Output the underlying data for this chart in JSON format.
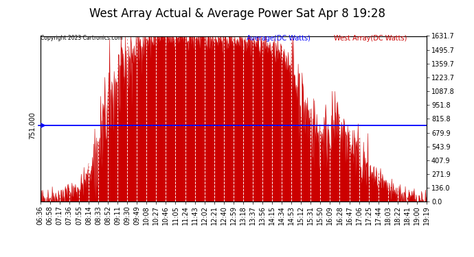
{
  "title": "West Array Actual & Average Power Sat Apr 8 19:28",
  "copyright": "Copyright 2023 Cartronics.com",
  "legend_avg": "Average(DC Watts)",
  "legend_west": "West Array(DC Watts)",
  "avg_line_value": 751.0,
  "left_label": "751.000",
  "right_label": "751.000",
  "right_yticks": [
    1631.7,
    1495.7,
    1359.7,
    1223.7,
    1087.8,
    951.8,
    815.8,
    679.9,
    543.9,
    407.9,
    271.9,
    136.0,
    0.0
  ],
  "ymin": 0.0,
  "ymax": 1631.7,
  "avg_line_color": "#0000ff",
  "fill_color": "#cc0000",
  "line_color": "#cc0000",
  "background_color": "#ffffff",
  "title_fontsize": 12,
  "tick_label_fontsize": 7,
  "x_labels": [
    "06:36",
    "06:58",
    "07:17",
    "07:36",
    "07:55",
    "08:14",
    "08:33",
    "08:52",
    "09:11",
    "09:30",
    "09:49",
    "10:08",
    "10:27",
    "10:46",
    "11:05",
    "11:24",
    "11:43",
    "12:02",
    "12:21",
    "12:40",
    "12:59",
    "13:18",
    "13:37",
    "13:56",
    "14:15",
    "14:34",
    "14:53",
    "15:12",
    "15:31",
    "15:50",
    "16:09",
    "16:28",
    "16:47",
    "17:06",
    "17:25",
    "17:44",
    "18:03",
    "18:22",
    "18:41",
    "19:00",
    "19:19"
  ]
}
